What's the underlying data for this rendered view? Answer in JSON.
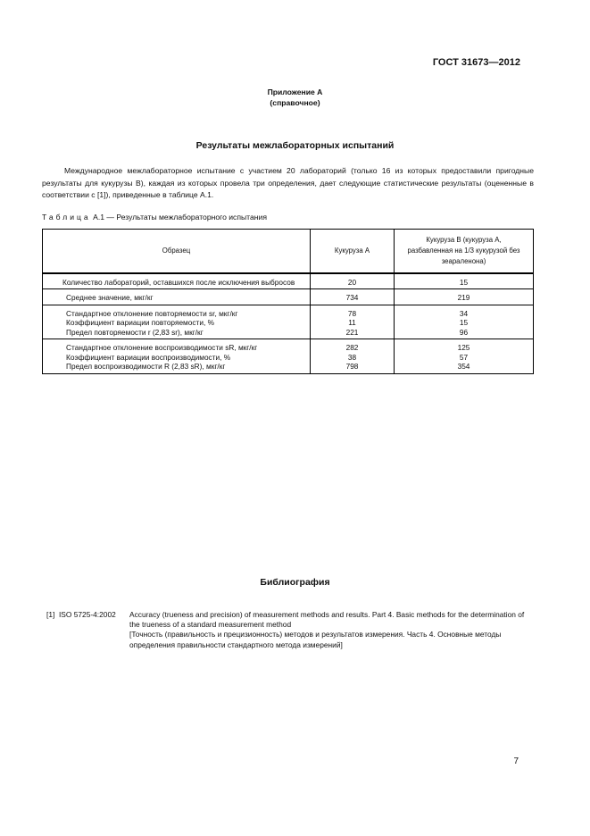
{
  "header": {
    "standard": "ГОСТ 31673—2012"
  },
  "appendix": {
    "title": "Приложение А",
    "subtitle": "(справочное)"
  },
  "section_title": "Результаты межлабораторных испытаний",
  "intro": "Международное межлабораторное испытание с участием 20 лабораторий (только 16 из которых предоставили пригодные результаты для кукурузы В), каждая из которых провела три определения, дает следующие статистические результаты (оцененные в соответствии с [1]), приведенные в таблице А.1.",
  "table": {
    "caption_label": "Таблица",
    "caption_text": "А.1 — Результаты межлабораторного испытания",
    "headers": [
      "Образец",
      "Кукуруза А",
      "Кукуруза В (кукуруза А, разбавленная на 1/3 кукурузой без зеараленона)"
    ],
    "groups": [
      {
        "rows": [
          {
            "label": "Количество лабораторий, оставшихся после исключения выбросов",
            "a": "20",
            "b": "15"
          }
        ]
      },
      {
        "rows": [
          {
            "label": "Среднее значение, мкг/кг",
            "a": "734",
            "b": "219"
          }
        ]
      },
      {
        "rows": [
          {
            "label": "Стандартное отклонение повторяемости sr, мкг/кг",
            "a": "78",
            "b": "34"
          },
          {
            "label": "Коэффициент вариации повторяемости, %",
            "a": "11",
            "b": "15"
          },
          {
            "label": "Предел повторяемости r (2,83 sr), мкг/кг",
            "a": "221",
            "b": "96"
          }
        ]
      },
      {
        "rows": [
          {
            "label": "Стандартное отклонение воспроизводимости sR, мкг/кг",
            "a": "282",
            "b": "125"
          },
          {
            "label": "Коэффициент вариации воспроизводимости, %",
            "a": "38",
            "b": "57"
          },
          {
            "label": "Предел воспроизводимости R (2,83 sR), мкг/кг",
            "a": "798",
            "b": "354"
          }
        ]
      }
    ]
  },
  "bibliography": {
    "title": "Библиография",
    "items": [
      {
        "ref": "[1]  ISO 5725-4:2002",
        "text": "Accuracy (trueness and precision) of measurement methods and results. Part 4. Basic methods for the determination of the trueness of a standard measurement method",
        "translation": "[Точность (правильность и прецизионность) методов и результатов измерения. Часть 4. Основные методы определения правильности стандартного метода измерений]"
      }
    ]
  },
  "page_number": "7"
}
